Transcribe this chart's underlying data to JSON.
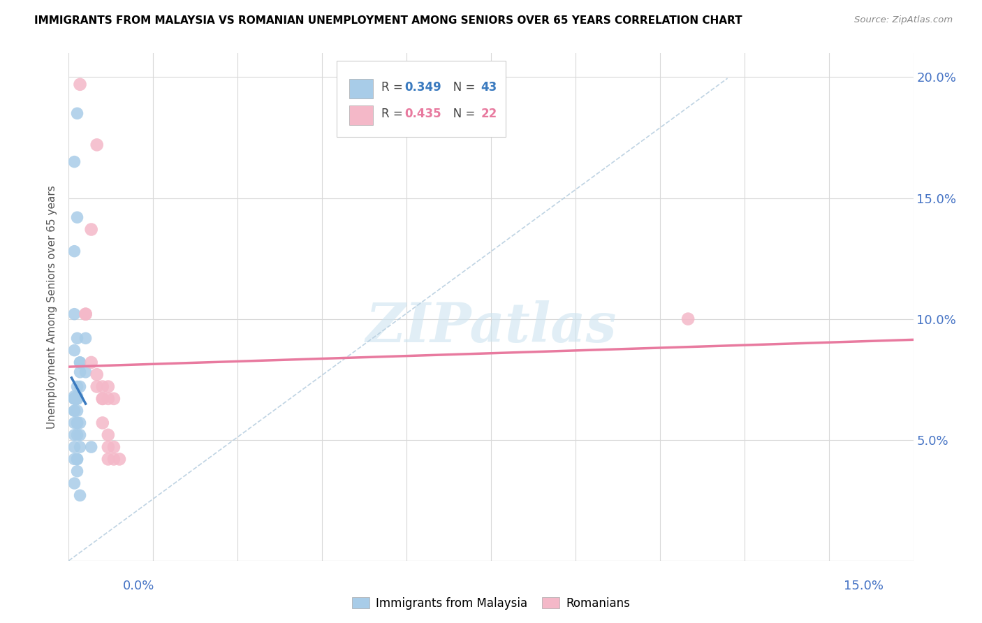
{
  "title": "IMMIGRANTS FROM MALAYSIA VS ROMANIAN UNEMPLOYMENT AMONG SENIORS OVER 65 YEARS CORRELATION CHART",
  "source": "Source: ZipAtlas.com",
  "ylabel": "Unemployment Among Seniors over 65 years",
  "xmin": 0.0,
  "xmax": 0.15,
  "ymin": 0.0,
  "ymax": 0.21,
  "legend1_r": "0.349",
  "legend1_n": "43",
  "legend2_r": "0.435",
  "legend2_n": "22",
  "blue_scatter_color": "#a8cce8",
  "pink_scatter_color": "#f4b8c8",
  "blue_line_color": "#3a7abf",
  "pink_line_color": "#e87a9f",
  "dashed_line_color": "#b8cfe0",
  "watermark": "ZIPatlas",
  "figsize": [
    14.06,
    8.92
  ],
  "dpi": 100,
  "malaysia_x": [
    0.001,
    0.0015,
    0.001,
    0.0015,
    0.001,
    0.002,
    0.001,
    0.0015,
    0.001,
    0.002,
    0.0015,
    0.001,
    0.0015,
    0.002,
    0.001,
    0.0015,
    0.003,
    0.0015,
    0.002,
    0.001,
    0.0015,
    0.001,
    0.0015,
    0.003,
    0.001,
    0.0015,
    0.001,
    0.002,
    0.0015,
    0.001,
    0.0015,
    0.002,
    0.0015,
    0.001,
    0.002,
    0.001,
    0.0015,
    0.0015,
    0.001,
    0.0015,
    0.001,
    0.002,
    0.004
  ],
  "malaysia_y": [
    0.068,
    0.185,
    0.165,
    0.142,
    0.128,
    0.082,
    0.102,
    0.092,
    0.087,
    0.072,
    0.068,
    0.067,
    0.072,
    0.082,
    0.067,
    0.067,
    0.078,
    0.067,
    0.078,
    0.067,
    0.067,
    0.067,
    0.067,
    0.092,
    0.062,
    0.062,
    0.062,
    0.057,
    0.057,
    0.057,
    0.052,
    0.052,
    0.057,
    0.052,
    0.047,
    0.047,
    0.042,
    0.042,
    0.042,
    0.037,
    0.032,
    0.027,
    0.047
  ],
  "romanian_x": [
    0.002,
    0.005,
    0.004,
    0.003,
    0.003,
    0.004,
    0.005,
    0.005,
    0.007,
    0.006,
    0.006,
    0.007,
    0.006,
    0.007,
    0.008,
    0.007,
    0.008,
    0.009,
    0.007,
    0.11,
    0.008,
    0.006
  ],
  "romanian_y": [
    0.197,
    0.172,
    0.137,
    0.102,
    0.102,
    0.082,
    0.072,
    0.077,
    0.067,
    0.067,
    0.072,
    0.072,
    0.057,
    0.052,
    0.047,
    0.047,
    0.042,
    0.042,
    0.042,
    0.1,
    0.067,
    0.067
  ]
}
